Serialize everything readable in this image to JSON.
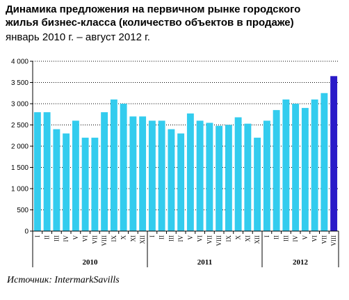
{
  "chart_data": {
    "type": "bar",
    "title_line1": "Динамика предложения на первичном рынке городского",
    "title_line2": "жилья бизнес-класса (количество объектов в продаже)",
    "subtitle": "январь 2010 г. – август 2012 г.",
    "source": "Источник: IntermarkSavills",
    "ylim": [
      0,
      4000
    ],
    "yticks": [
      "0",
      "500",
      "1 000",
      "1 500",
      "2 000",
      "2 500",
      "3 000",
      "3 500",
      "4 000"
    ],
    "grid": true,
    "categories": [
      "I",
      "II",
      "III",
      "IV",
      "V",
      "VI",
      "VII",
      "VIII",
      "IX",
      "X",
      "XI",
      "XII",
      "I",
      "II",
      "III",
      "IV",
      "V",
      "VI",
      "VII",
      "VIII",
      "IX",
      "X",
      "XI",
      "XII",
      "I",
      "II",
      "III",
      "IV",
      "V",
      "VI",
      "VII",
      "VIII"
    ],
    "values": [
      2800,
      2800,
      2400,
      2300,
      2600,
      2200,
      2200,
      2800,
      3100,
      3000,
      2700,
      2700,
      2600,
      2600,
      2400,
      2300,
      2770,
      2600,
      2550,
      2480,
      2500,
      2680,
      2530,
      2200,
      2600,
      2850,
      3100,
      3000,
      2900,
      3100,
      3250,
      3650
    ],
    "highlight_index": 31,
    "years": [
      {
        "label": "2010",
        "start": 0,
        "end": 11
      },
      {
        "label": "2011",
        "start": 12,
        "end": 23
      },
      {
        "label": "2012",
        "start": 24,
        "end": 31
      }
    ],
    "colors": {
      "bar": "#33CCEE",
      "highlight": "#2A1AC8",
      "grid": "#000000",
      "axis": "#000000"
    }
  }
}
